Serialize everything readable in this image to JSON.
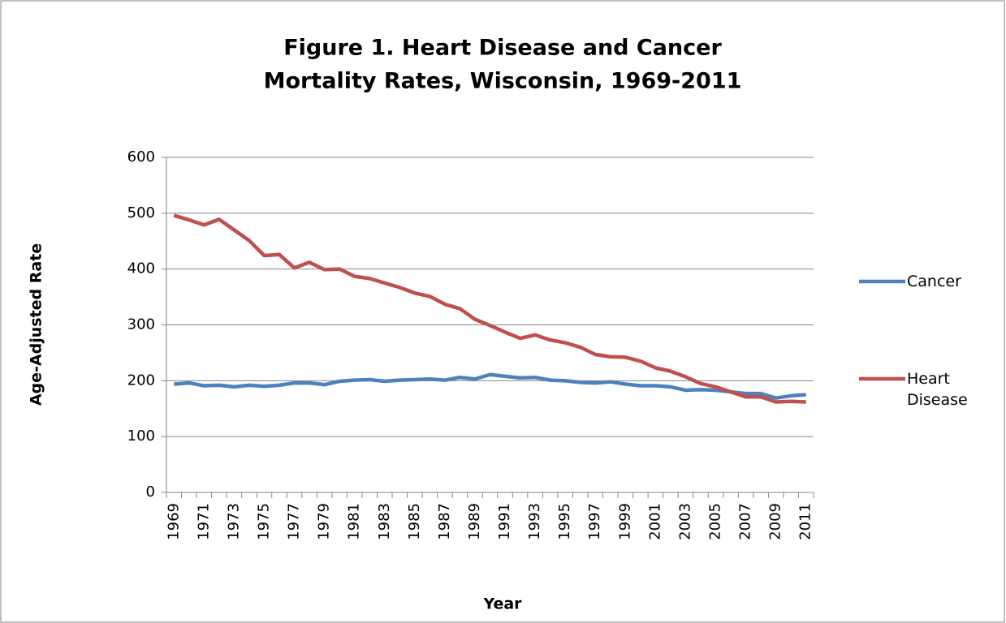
{
  "chart_data": {
    "type": "line",
    "title": [
      "Figure 1. Heart Disease and Cancer",
      "Mortality Rates, Wisconsin, 1969-2011"
    ],
    "x_label": "Year",
    "y_label": "Age-Adjusted Rate",
    "categories": [
      "1969",
      null,
      "1971",
      null,
      "1973",
      null,
      "1975",
      null,
      "1977",
      null,
      "1979",
      null,
      "1981",
      null,
      "1983",
      null,
      "1985",
      null,
      "1987",
      null,
      "1989",
      null,
      "1991",
      null,
      "1993",
      null,
      "1995",
      null,
      "1997",
      null,
      "1999",
      null,
      "2001",
      null,
      "2003",
      null,
      "2005",
      null,
      "2007",
      null,
      "2009",
      null,
      "2011"
    ],
    "series": [
      {
        "name": "Cancer",
        "color": "#4f81bd",
        "values": [
          194,
          196,
          191,
          192,
          189,
          192,
          190,
          192,
          196,
          196,
          193,
          199,
          201,
          202,
          199,
          201,
          202,
          203,
          201,
          206,
          203,
          211,
          208,
          205,
          206,
          201,
          200,
          197,
          196,
          198,
          194,
          191,
          191,
          189,
          183,
          184,
          183,
          180,
          177,
          177,
          169,
          173,
          175
        ]
      },
      {
        "name": "Heart Disease",
        "color": "#c0504d",
        "values": [
          496,
          488,
          479,
          489,
          470,
          451,
          424,
          426,
          402,
          412,
          399,
          400,
          387,
          383,
          375,
          367,
          357,
          351,
          337,
          329,
          310,
          299,
          287,
          276,
          282,
          273,
          268,
          260,
          247,
          243,
          242,
          235,
          223,
          217,
          207,
          195,
          189,
          180,
          171,
          171,
          162,
          163,
          162
        ]
      }
    ],
    "ylim": [
      0,
      600
    ],
    "yticks": [
      0,
      100,
      200,
      300,
      400,
      500,
      600
    ],
    "grid": true,
    "legend": "right"
  }
}
